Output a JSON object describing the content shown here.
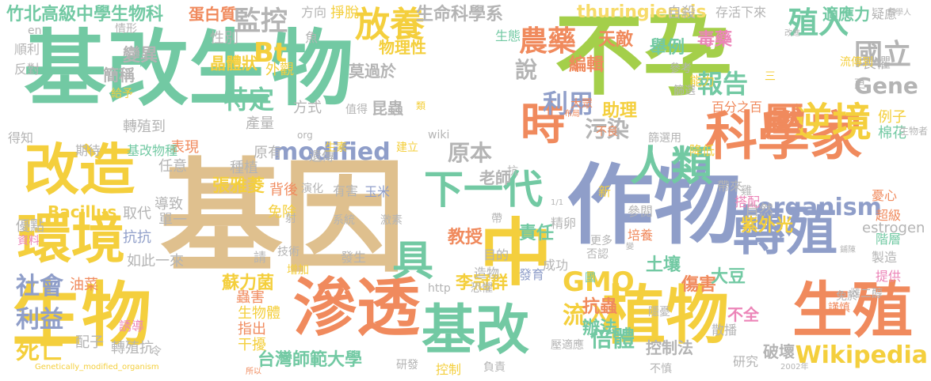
{
  "palette": {
    "green": "#72c9a3",
    "tan": "#dfc08e",
    "yellow": "#f4cf3d",
    "orange": "#f08a5d",
    "blue": "#8f9ec9",
    "lime": "#a4cf4a",
    "pink": "#ec85b8",
    "gray": "#b4b4b4",
    "lightyellow": "#f7db6a"
  },
  "words": [
    {
      "text": "基改生物",
      "color": "green"
    },
    {
      "text": "不孕",
      "color": "lime"
    },
    {
      "text": "基因",
      "color": "tan"
    },
    {
      "text": "作物",
      "color": "blue"
    },
    {
      "text": "科學家",
      "color": "orange"
    },
    {
      "text": "滲透",
      "color": "orange"
    },
    {
      "text": "生物",
      "color": "yellow"
    },
    {
      "text": "植物",
      "color": "yellow"
    },
    {
      "text": "生殖",
      "color": "orange"
    },
    {
      "text": "基改",
      "color": "green"
    },
    {
      "text": "環境",
      "color": "yellow"
    },
    {
      "text": "改造",
      "color": "yellow"
    },
    {
      "text": "轉殖",
      "color": "blue"
    },
    {
      "text": "中",
      "color": "yellow"
    },
    {
      "text": "時",
      "color": "orange"
    },
    {
      "text": "人類",
      "color": "green"
    },
    {
      "text": "下一代",
      "color": "green"
    },
    {
      "text": "逆境",
      "color": "yellow"
    },
    {
      "text": "壓",
      "color": "orange"
    },
    {
      "text": "放養",
      "color": "yellow"
    },
    {
      "text": "監控",
      "color": "gray"
    },
    {
      "text": "農藥",
      "color": "orange"
    },
    {
      "text": "國立",
      "color": "gray"
    },
    {
      "text": "殖入",
      "color": "green"
    },
    {
      "text": "特定",
      "color": "green"
    },
    {
      "text": "報告",
      "color": "green"
    },
    {
      "text": "利用",
      "color": "blue"
    },
    {
      "text": "說",
      "color": "gray"
    },
    {
      "text": "Gene",
      "color": "gray"
    },
    {
      "text": "modified",
      "color": "blue"
    },
    {
      "text": "organism",
      "color": "blue"
    },
    {
      "text": "Bt",
      "color": "yellow"
    },
    {
      "text": "GMO",
      "color": "yellow"
    },
    {
      "text": "Wikipedia",
      "color": "yellow"
    },
    {
      "text": "具",
      "color": "green"
    },
    {
      "text": "社會",
      "color": "blue"
    },
    {
      "text": "利益",
      "color": "blue"
    },
    {
      "text": "死亡",
      "color": "yellow"
    },
    {
      "text": "倍體",
      "color": "green"
    },
    {
      "text": "流入",
      "color": "yellow"
    },
    {
      "text": "原本",
      "color": "gray"
    },
    {
      "text": "污染",
      "color": "gray"
    },
    {
      "text": "竹北高級中學生物科",
      "color": "green"
    },
    {
      "text": "蛋白質",
      "color": "orange"
    },
    {
      "text": "生命科學系",
      "color": "gray"
    },
    {
      "text": "thuringiensis",
      "color": "lightyellow"
    },
    {
      "text": "自殺",
      "color": "gray"
    },
    {
      "text": "存活下來",
      "color": "gray"
    },
    {
      "text": "適應力",
      "color": "green"
    },
    {
      "text": "疑慮",
      "color": "gray"
    },
    {
      "text": "台灣師範大學",
      "color": "green"
    },
    {
      "text": "李冠群",
      "color": "yellow"
    },
    {
      "text": "蘇力菌",
      "color": "yellow"
    },
    {
      "text": "張雅菱",
      "color": "yellow"
    },
    {
      "text": "Bacillus",
      "color": "yellow"
    },
    {
      "text": "教授",
      "color": "orange"
    },
    {
      "text": "責任",
      "color": "green"
    },
    {
      "text": "土壤",
      "color": "green"
    },
    {
      "text": "抗蟲",
      "color": "orange"
    },
    {
      "text": "辦法",
      "color": "green"
    },
    {
      "text": "控制法",
      "color": "gray"
    },
    {
      "text": "破壞",
      "color": "gray"
    },
    {
      "text": "傷害",
      "color": "orange"
    },
    {
      "text": "大豆",
      "color": "green"
    },
    {
      "text": "紫外光",
      "color": "yellow"
    },
    {
      "text": "助理",
      "color": "yellow"
    },
    {
      "text": "舉例",
      "color": "green"
    },
    {
      "text": "毒藥",
      "color": "pink"
    },
    {
      "text": "天敵",
      "color": "orange"
    },
    {
      "text": "編輯",
      "color": "orange"
    },
    {
      "text": "物理性",
      "color": "yellow"
    },
    {
      "text": "掙脫",
      "color": "yellow"
    },
    {
      "text": "方向",
      "color": "gray"
    },
    {
      "text": "魚",
      "color": "gray"
    },
    {
      "text": "變異",
      "color": "gray"
    },
    {
      "text": "簡稱",
      "color": "gray"
    },
    {
      "text": "晶體狀",
      "color": "yellow"
    },
    {
      "text": "性別",
      "color": "gray"
    },
    {
      "text": "外觀",
      "color": "yellow"
    },
    {
      "text": "莫過於",
      "color": "gray"
    },
    {
      "text": "昆蟲",
      "color": "gray"
    },
    {
      "text": "方式",
      "color": "gray"
    },
    {
      "text": "值得",
      "color": "gray"
    },
    {
      "text": "產量",
      "color": "gray"
    },
    {
      "text": "轉殖到",
      "color": "gray"
    },
    {
      "text": "表現",
      "color": "orange"
    },
    {
      "text": "原有",
      "color": "gray"
    },
    {
      "text": "種植",
      "color": "gray"
    },
    {
      "text": "遺傳",
      "color": "gray"
    },
    {
      "text": "老師",
      "color": "gray"
    },
    {
      "text": "任意",
      "color": "gray"
    },
    {
      "text": "導致",
      "color": "gray"
    },
    {
      "text": "單一",
      "color": "gray"
    },
    {
      "text": "背後",
      "color": "orange"
    },
    {
      "text": "免除",
      "color": "yellow"
    },
    {
      "text": "有害",
      "color": "gray"
    },
    {
      "text": "玉米",
      "color": "blue"
    },
    {
      "text": "系統",
      "color": "gray"
    },
    {
      "text": "激素",
      "color": "gray"
    },
    {
      "text": "發生",
      "color": "gray"
    },
    {
      "text": "取代",
      "color": "gray"
    },
    {
      "text": "抗抗",
      "color": "blue"
    },
    {
      "text": "請",
      "color": "gray"
    },
    {
      "text": "技術",
      "color": "gray"
    },
    {
      "text": "增加",
      "color": "yellow"
    },
    {
      "text": "如此一來",
      "color": "gray"
    },
    {
      "text": "油菜",
      "color": "orange"
    },
    {
      "text": "蟲害",
      "color": "orange"
    },
    {
      "text": "生物體",
      "color": "yellow"
    },
    {
      "text": "指出",
      "color": "orange"
    },
    {
      "text": "干擾",
      "color": "yellow"
    },
    {
      "text": "配子",
      "color": "gray"
    },
    {
      "text": "轉殖抗",
      "color": "gray"
    },
    {
      "text": "誘導",
      "color": "pink"
    },
    {
      "text": "優點",
      "color": "gray"
    },
    {
      "text": "期待",
      "color": "gray"
    },
    {
      "text": "基改物種",
      "color": "green"
    },
    {
      "text": "得知",
      "color": "gray"
    },
    {
      "text": "順利",
      "color": "gray"
    },
    {
      "text": "反對",
      "color": "gray"
    },
    {
      "text": "給予",
      "color": "yellow"
    },
    {
      "text": "情形",
      "color": "gray"
    },
    {
      "text": "生態",
      "color": "green"
    },
    {
      "text": "棉花",
      "color": "green"
    },
    {
      "text": "例子",
      "color": "yellow"
    },
    {
      "text": "estrogen",
      "color": "gray"
    },
    {
      "text": "畏懼",
      "color": "gray"
    },
    {
      "text": "精卵",
      "color": "gray"
    },
    {
      "text": "成功",
      "color": "gray"
    },
    {
      "text": "發育",
      "color": "blue"
    },
    {
      "text": "目的",
      "color": "gray"
    },
    {
      "text": "帶",
      "color": "gray"
    },
    {
      "text": "造物",
      "color": "gray"
    },
    {
      "text": "否認",
      "color": "gray"
    },
    {
      "text": "更多",
      "color": "gray"
    },
    {
      "text": "參考",
      "color": "gray"
    },
    {
      "text": "流傳到",
      "color": "yellow"
    },
    {
      "text": "能力",
      "color": "yellow"
    },
    {
      "text": "百分之百",
      "color": "orange"
    },
    {
      "text": "不良",
      "color": "orange"
    },
    {
      "text": "篩選用",
      "color": "gray"
    },
    {
      "text": "降低",
      "color": "yellow"
    },
    {
      "text": "新",
      "color": "yellow"
    },
    {
      "text": "自然",
      "color": "gray"
    },
    {
      "text": "參閱",
      "color": "gray"
    },
    {
      "text": "培養",
      "color": "orange"
    },
    {
      "text": "帶來",
      "color": "gray"
    },
    {
      "text": "搭配",
      "color": "pink"
    },
    {
      "text": "憂心",
      "color": "orange"
    },
    {
      "text": "超級",
      "color": "orange"
    },
    {
      "text": "階層",
      "color": "green"
    },
    {
      "text": "製造",
      "color": "gray"
    },
    {
      "text": "提供",
      "color": "pink"
    },
    {
      "text": "免於",
      "color": "gray"
    },
    {
      "text": "謹慎",
      "color": "orange"
    },
    {
      "text": "雌二醇",
      "color": "gray"
    },
    {
      "text": "不全",
      "color": "pink"
    },
    {
      "text": "散播",
      "color": "gray"
    },
    {
      "text": "隱憂",
      "color": "gray"
    },
    {
      "text": "篩選",
      "color": "gray"
    },
    {
      "text": "研究",
      "color": "gray"
    },
    {
      "text": "壓適應",
      "color": "gray"
    },
    {
      "text": "控制",
      "color": "yellow"
    },
    {
      "text": "不慎",
      "color": "gray"
    },
    {
      "text": "負責",
      "color": "gray"
    },
    {
      "text": "恐懼",
      "color": "gray"
    },
    {
      "text": "演化",
      "color": "gray"
    },
    {
      "text": "建立",
      "color": "yellow"
    },
    {
      "text": "生素",
      "color": "yellow"
    },
    {
      "text": "類",
      "color": "yellow"
    },
    {
      "text": "抗",
      "color": "gray"
    },
    {
      "text": "org",
      "color": "gray"
    },
    {
      "text": "http",
      "color": "gray"
    },
    {
      "text": "wiki",
      "color": "gray"
    },
    {
      "text": "en",
      "color": "gray"
    },
    {
      "text": "令",
      "color": "gray"
    },
    {
      "text": "研發",
      "color": "gray"
    },
    {
      "text": "Genetically_modified_organism",
      "color": "yellow"
    },
    {
      "text": "生物者",
      "color": "gray"
    },
    {
      "text": "更",
      "color": "gray"
    },
    {
      "text": "三",
      "color": "yellow"
    },
    {
      "text": "資料",
      "color": "pink"
    },
    {
      "text": "射",
      "color": "gray"
    },
    {
      "text": "大眾",
      "color": "orange"
    },
    {
      "text": "改進",
      "color": "gray"
    },
    {
      "text": "科學人",
      "color": "gray"
    },
    {
      "text": "2002年",
      "color": "gray"
    },
    {
      "text": "雞",
      "color": "gray"
    },
    {
      "text": "國",
      "color": "green"
    },
    {
      "text": "布局",
      "color": "orange"
    },
    {
      "text": "鋪陳",
      "color": "gray"
    },
    {
      "text": "1/1",
      "color": "gray"
    },
    {
      "text": "變",
      "color": "gray"
    },
    {
      "text": "所以",
      "color": "orange"
    }
  ]
}
